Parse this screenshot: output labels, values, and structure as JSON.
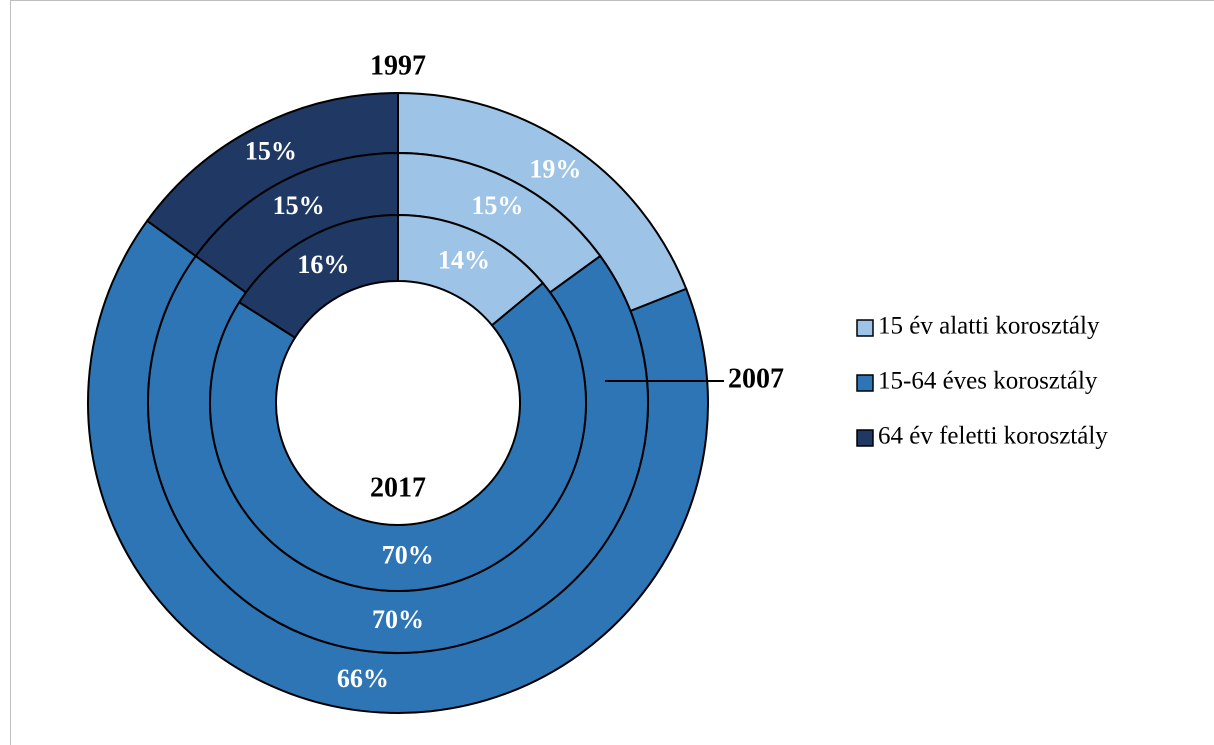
{
  "chart_data": {
    "type": "donut",
    "categories": [
      "15 év alatti korosztály",
      "15-64 éves korosztály",
      "64 év feletti korosztály"
    ],
    "colors": [
      "#9dc3e6",
      "#2e75b6",
      "#1f3864"
    ],
    "series": [
      {
        "name": "1997",
        "values": [
          19,
          66,
          15
        ],
        "value_labels": [
          "19%",
          "66%",
          "15%"
        ]
      },
      {
        "name": "2007",
        "values": [
          15,
          70,
          15
        ],
        "value_labels": [
          "15%",
          "70%",
          "15%"
        ]
      },
      {
        "name": "2017",
        "values": [
          14,
          70,
          16
        ],
        "value_labels": [
          "14%",
          "70%",
          "16%"
        ]
      }
    ],
    "legend": "right"
  }
}
